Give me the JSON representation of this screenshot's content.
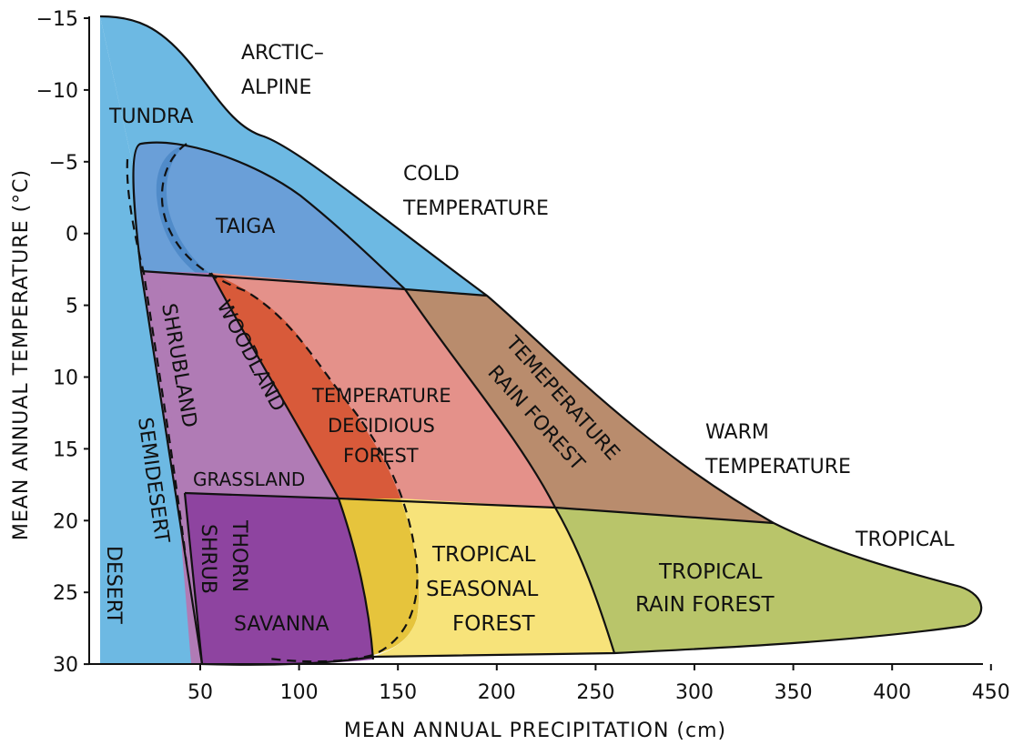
{
  "axes": {
    "ylabel": "MEAN ANNUAL TEMPERATURE (°C)",
    "xlabel": "MEAN ANNUAL PRECIPITATION (cm)",
    "yticks": [
      "−15",
      "−10",
      "−5",
      "0",
      "5",
      "10",
      "15",
      "20",
      "25",
      "30"
    ],
    "xticks": [
      "50",
      "100",
      "150",
      "200",
      "250",
      "300",
      "350",
      "400",
      "450"
    ]
  },
  "zones": {
    "arctic_alpine_1": "ARCTIC–",
    "arctic_alpine_2": "ALPINE",
    "cold_1": "COLD",
    "cold_2": "TEMPERATURE",
    "warm_1": "WARM",
    "warm_2": "TEMPERATURE",
    "tropical": "TROPICAL"
  },
  "biomes": {
    "tundra": "TUNDRA",
    "taiga": "TAIGA",
    "shrubland": "SHRUBLAND",
    "woodland": "WOODLAND",
    "semidesert": "SEMIDESERT",
    "desert": "DESERT",
    "grassland": "GRASSLAND",
    "temp_decid_1": "TEMPERATURE",
    "temp_decid_2": "DECIDIOUS",
    "temp_decid_3": "FOREST",
    "temp_rain_1": "TEMEPERATURE",
    "temp_rain_2": "RAIN FOREST",
    "thorn": "THORN",
    "shrub": "SHRUB",
    "savanna": "SAVANNA",
    "trop_seasonal_1": "TROPICAL",
    "trop_seasonal_2": "SEASONAL",
    "trop_seasonal_3": "FOREST",
    "trop_rain_1": "TROPICAL",
    "trop_rain_2": "RAIN FOREST"
  },
  "colors": {
    "tundra": "#6db9e3",
    "taiga": "#6a9fd8",
    "taiga_dark": "#4a86c6",
    "shrubland": "#b07bb5",
    "woodland": "#d85a3a",
    "temp_deciduous": "#e4918a",
    "temp_rainforest": "#b98c6d",
    "thorn_savanna": "#8e44a0",
    "savanna_light": "#e6c43c",
    "trop_seasonal": "#f7e37a",
    "trop_rainforest": "#b9c56a",
    "semidesert": "#b07bb5"
  }
}
